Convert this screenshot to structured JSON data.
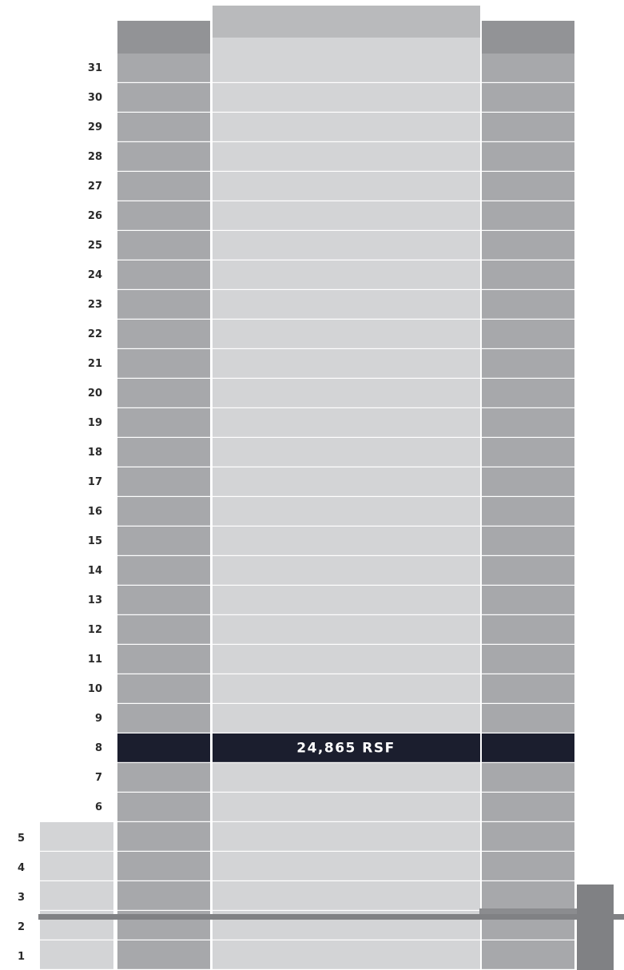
{
  "floors": [
    {
      "label": "31"
    },
    {
      "label": "30"
    },
    {
      "label": "29"
    },
    {
      "label": "28"
    },
    {
      "label": "27"
    },
    {
      "label": "26"
    },
    {
      "label": "25"
    },
    {
      "label": "24"
    },
    {
      "label": "23"
    },
    {
      "label": "22"
    },
    {
      "label": "21"
    },
    {
      "label": "20"
    },
    {
      "label": "19"
    },
    {
      "label": "18"
    },
    {
      "label": "17"
    },
    {
      "label": "16"
    },
    {
      "label": "15"
    },
    {
      "label": "14"
    },
    {
      "label": "13"
    },
    {
      "label": "12"
    },
    {
      "label": "11"
    },
    {
      "label": "10"
    },
    {
      "label": "9"
    },
    {
      "label": "8",
      "note": "24,865 RSF"
    },
    {
      "label": "7"
    },
    {
      "label": "6"
    },
    {
      "label": "5"
    },
    {
      "label": "4"
    },
    {
      "label": "3"
    },
    {
      "label": "2"
    },
    {
      "label": "1"
    }
  ]
}
